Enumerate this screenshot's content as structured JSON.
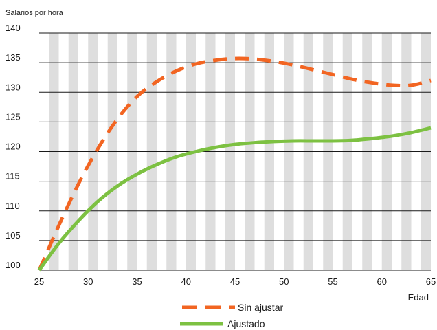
{
  "chart_data": {
    "type": "line",
    "ylabel": "Salarios por hora",
    "xlabel": "Edad",
    "xlim": [
      25,
      65
    ],
    "ylim": [
      100,
      140
    ],
    "x_ticks": [
      25,
      30,
      35,
      40,
      45,
      50,
      55,
      60,
      65
    ],
    "y_ticks": [
      100,
      105,
      110,
      115,
      120,
      125,
      130,
      135,
      140
    ],
    "grid": "vertical alternating grey bands, horizontal gridlines",
    "legend_position": "bottom-center",
    "series": [
      {
        "name": "Sin ajustar",
        "color": "#f26522",
        "style": "dashed",
        "x": [
          25,
          27,
          29,
          31,
          33,
          35,
          37,
          39,
          41,
          43,
          45,
          47,
          49,
          51,
          53,
          55,
          57,
          59,
          61,
          63,
          65
        ],
        "y": [
          100,
          107.5,
          114.5,
          120.5,
          125.5,
          129.3,
          131.8,
          133.6,
          134.8,
          135.4,
          135.7,
          135.6,
          135.2,
          134.6,
          133.8,
          133,
          132.2,
          131.6,
          131.2,
          131.2,
          132
        ]
      },
      {
        "name": "Ajustado",
        "color": "#7dc142",
        "style": "solid",
        "x": [
          25,
          27,
          29,
          31,
          33,
          35,
          37,
          39,
          41,
          43,
          45,
          47,
          49,
          51,
          53,
          55,
          57,
          59,
          61,
          63,
          65
        ],
        "y": [
          100,
          104.5,
          108.3,
          111.6,
          114.2,
          116.2,
          117.8,
          119.1,
          120,
          120.7,
          121.2,
          121.5,
          121.7,
          121.8,
          121.8,
          121.8,
          121.9,
          122.2,
          122.6,
          123.2,
          124
        ]
      }
    ]
  }
}
